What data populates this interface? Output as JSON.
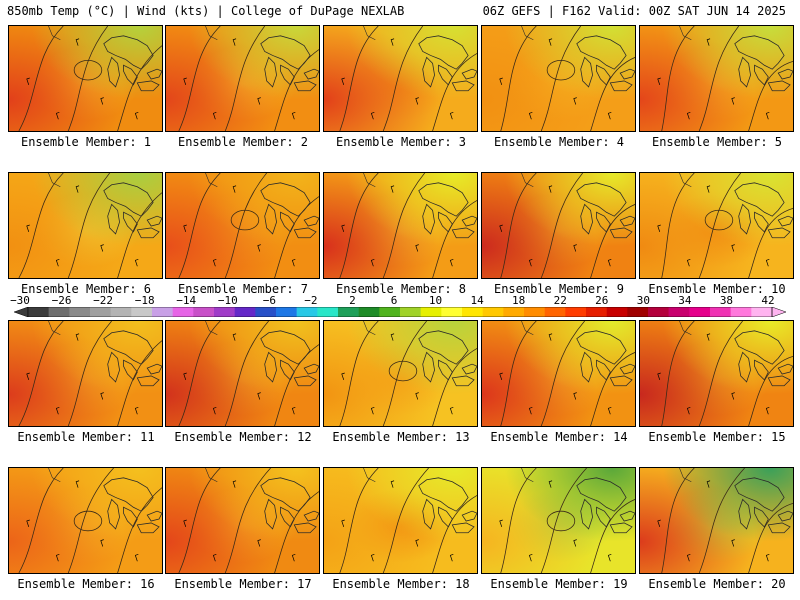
{
  "header": {
    "left_title": "850mb Temp (°C) | Wind (kts) | College of DuPage NEXLAB",
    "right_title": "06Z GEFS | F162 Valid: 00Z SAT JUN 14 2025"
  },
  "colorbar": {
    "ticks": [
      "−30",
      "−26",
      "−22",
      "−18",
      "−14",
      "−10",
      "−6",
      "−2",
      "2",
      "6",
      "10",
      "14",
      "18",
      "22",
      "26",
      "30",
      "34",
      "38",
      "42"
    ],
    "colors": [
      "#3c3c3c",
      "#6e6e6e",
      "#8a8a8a",
      "#a0a0a0",
      "#b4b4b4",
      "#c8c8c8",
      "#c8a0e6",
      "#e664e6",
      "#c850c8",
      "#a03cc8",
      "#6428c8",
      "#2850c8",
      "#1e78e6",
      "#28c8e6",
      "#28e6c8",
      "#1ea05a",
      "#1e8c28",
      "#50b41e",
      "#a0d228",
      "#e6f000",
      "#ffff32",
      "#ffe600",
      "#ffc800",
      "#ffaa00",
      "#ff8c00",
      "#ff6400",
      "#ff3c00",
      "#e61e00",
      "#c80000",
      "#a00000",
      "#b4003c",
      "#c8006e",
      "#e6008c",
      "#f032b4",
      "#ff78dc",
      "#ffb4f0"
    ]
  },
  "members": [
    {
      "label": "Ensemble Member: 1",
      "base": "#f08c10",
      "west": "#e2401a",
      "north": "#b4d23c",
      "spot": "#f5b120"
    },
    {
      "label": "Ensemble Member: 2",
      "base": "#f28e12",
      "west": "#e3461a",
      "north": "#c8d83a",
      "spot": "#f7ba24"
    },
    {
      "label": "Ensemble Member: 3",
      "base": "#f5ab1c",
      "west": "#e2401a",
      "north": "#d6e032",
      "spot": "#f49a16"
    },
    {
      "label": "Ensemble Member: 4",
      "base": "#f49e18",
      "west": "#f29012",
      "north": "#d2e034",
      "spot": "#f6b020"
    },
    {
      "label": "Ensemble Member: 5",
      "base": "#f39814",
      "west": "#e4461a",
      "north": "#c6de3c",
      "spot": "#f6b420"
    },
    {
      "label": "Ensemble Member: 6",
      "base": "#f5a817",
      "west": "#f29012",
      "north": "#a8cf40",
      "spot": "#f0c830"
    },
    {
      "label": "Ensemble Member: 7",
      "base": "#f28e12",
      "west": "#e84e1a",
      "north": "#f2b41a",
      "spot": "#f4a218"
    },
    {
      "label": "Ensemble Member: 8",
      "base": "#f49c16",
      "west": "#d8301c",
      "north": "#e6ec28",
      "spot": "#f7bc24"
    },
    {
      "label": "Ensemble Member: 9",
      "base": "#f08212",
      "west": "#cc2a1e",
      "north": "#e6ea2a",
      "spot": "#f6ae1e"
    },
    {
      "label": "Ensemble Member: 10",
      "base": "#f6b41e",
      "west": "#f08a12",
      "north": "#d8e432",
      "spot": "#f29414"
    },
    {
      "label": "Ensemble Member: 11",
      "base": "#f29014",
      "west": "#dc3c1c",
      "north": "#f2c01e",
      "spot": "#f6ae1e"
    },
    {
      "label": "Ensemble Member: 12",
      "base": "#f08612",
      "west": "#d2321c",
      "north": "#f0c21e",
      "spot": "#f6ac1e"
    },
    {
      "label": "Ensemble Member: 13",
      "base": "#f6c222",
      "west": "#f29412",
      "north": "#b8d43c",
      "spot": "#f5ac1c"
    },
    {
      "label": "Ensemble Member: 14",
      "base": "#f29212",
      "west": "#dc361c",
      "north": "#e2ec2c",
      "spot": "#f6b220"
    },
    {
      "label": "Ensemble Member: 15",
      "base": "#f08412",
      "west": "#c8281e",
      "north": "#e8ec28",
      "spot": "#f5aa1c"
    },
    {
      "label": "Ensemble Member: 16",
      "base": "#f49c16",
      "west": "#ec6418",
      "north": "#f4c01e",
      "spot": "#f6b420"
    },
    {
      "label": "Ensemble Member: 17",
      "base": "#f08a12",
      "west": "#e4461a",
      "north": "#f4c21e",
      "spot": "#f6ae1e"
    },
    {
      "label": "Ensemble Member: 18",
      "base": "#f6bc1e",
      "west": "#f4a216",
      "north": "#e6ea2a",
      "spot": "#f29212"
    },
    {
      "label": "Ensemble Member: 19",
      "base": "#e8e42a",
      "west": "#f6b420",
      "north": "#5aa83a",
      "spot": "#b8d43c"
    },
    {
      "label": "Ensemble Member: 20",
      "base": "#f6b21e",
      "west": "#dc3c1c",
      "north": "#3aa05a",
      "spot": "#c4d83a"
    }
  ]
}
